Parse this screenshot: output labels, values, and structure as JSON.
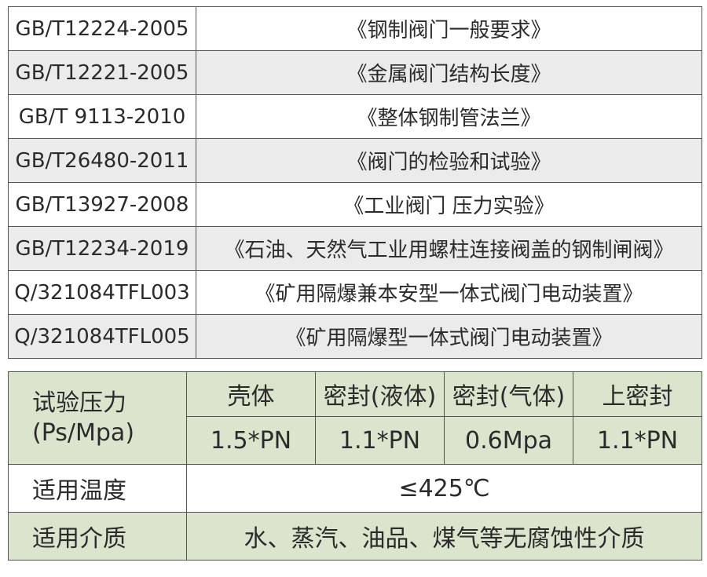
{
  "standards": [
    {
      "code": "GB/T12224-2005",
      "title": "《钢制阀门一般要求》"
    },
    {
      "code": "GB/T12221-2005",
      "title": "《金属阀门结构长度》"
    },
    {
      "code": "GB/T 9113-2010",
      "title": "《整体钢制管法兰》"
    },
    {
      "code": "GB/T26480-2011",
      "title": "《阀门的检验和试验》"
    },
    {
      "code": "GB/T13927-2008",
      "title": "《工业阀门 压力实验》"
    },
    {
      "code": "GB/T12234-2019",
      "title": "《石油、天然气工业用螺柱连接阀盖的钢制闸阀》"
    },
    {
      "code": "Q/321084TFL003",
      "title": "《矿用隔爆兼本安型一体式阀门电动装置》"
    },
    {
      "code": "Q/321084TFL005",
      "title": "《矿用隔爆型一体式阀门电动装置》"
    }
  ],
  "specs": {
    "test_pressure_label_1": "试验压力",
    "test_pressure_label_2": "(Ps/Mpa)",
    "headers": [
      "壳体",
      "密封(液体)",
      "密封(气体)",
      "上密封"
    ],
    "values": [
      "1.5*PN",
      "1.1*PN",
      "0.6Mpa",
      "1.1*PN"
    ],
    "temp_label": "适用温度",
    "temp_value": "≤425℃",
    "medium_label": "适用介质",
    "medium_value": "水、蒸汽、油品、煤气等无腐蚀性介质"
  },
  "colors": {
    "green": "#dbe5cd",
    "gray": "#ebebeb",
    "border": "#555555"
  }
}
